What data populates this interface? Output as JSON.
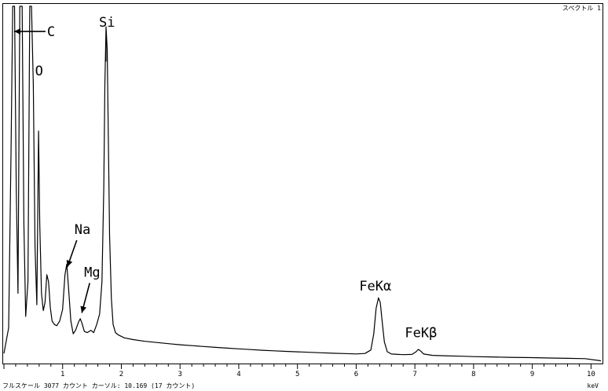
{
  "chart_data": {
    "type": "line",
    "title": "",
    "spectrum_label": "スペクトル 1",
    "status_text": "フルスケール 3077 カウント カーソル: 10.169 (17 カウント)",
    "xlabel": "keV",
    "ylabel": "",
    "xlim": [
      0,
      10.169
    ],
    "ylim": [
      0,
      3077
    ],
    "x_ticks": [
      "1",
      "2",
      "3",
      "4",
      "5",
      "6",
      "7",
      "8",
      "9",
      "10"
    ],
    "series": [
      {
        "points": [
          [
            0.0,
            80
          ],
          [
            0.08,
            300
          ],
          [
            0.12,
            1800
          ],
          [
            0.15,
            3077
          ],
          [
            0.18,
            3077
          ],
          [
            0.21,
            1500
          ],
          [
            0.24,
            600
          ],
          [
            0.27,
            3077
          ],
          [
            0.31,
            3077
          ],
          [
            0.34,
            1200
          ],
          [
            0.37,
            400
          ],
          [
            0.41,
            700
          ],
          [
            0.44,
            3077
          ],
          [
            0.47,
            3077
          ],
          [
            0.5,
            2400
          ],
          [
            0.53,
            1000
          ],
          [
            0.56,
            500
          ],
          [
            0.59,
            2000
          ],
          [
            0.61,
            1200
          ],
          [
            0.64,
            600
          ],
          [
            0.67,
            450
          ],
          [
            0.7,
            520
          ],
          [
            0.73,
            760
          ],
          [
            0.76,
            700
          ],
          [
            0.79,
            480
          ],
          [
            0.82,
            360
          ],
          [
            0.86,
            330
          ],
          [
            0.9,
            320
          ],
          [
            0.95,
            360
          ],
          [
            1.0,
            460
          ],
          [
            1.04,
            760
          ],
          [
            1.07,
            850
          ],
          [
            1.1,
            650
          ],
          [
            1.14,
            360
          ],
          [
            1.18,
            250
          ],
          [
            1.22,
            280
          ],
          [
            1.27,
            350
          ],
          [
            1.3,
            380
          ],
          [
            1.33,
            340
          ],
          [
            1.37,
            270
          ],
          [
            1.42,
            260
          ],
          [
            1.48,
            280
          ],
          [
            1.53,
            260
          ],
          [
            1.58,
            330
          ],
          [
            1.63,
            420
          ],
          [
            1.67,
            700
          ],
          [
            1.7,
            1500
          ],
          [
            1.72,
            2400
          ],
          [
            1.74,
            2900
          ],
          [
            1.76,
            2700
          ],
          [
            1.78,
            1900
          ],
          [
            1.8,
            1100
          ],
          [
            1.83,
            550
          ],
          [
            1.86,
            330
          ],
          [
            1.9,
            260
          ],
          [
            1.95,
            240
          ],
          [
            2.05,
            215
          ],
          [
            2.2,
            200
          ],
          [
            2.4,
            185
          ],
          [
            2.6,
            175
          ],
          [
            2.8,
            165
          ],
          [
            3.0,
            155
          ],
          [
            3.2,
            148
          ],
          [
            3.4,
            140
          ],
          [
            3.6,
            133
          ],
          [
            3.8,
            126
          ],
          [
            4.0,
            120
          ],
          [
            4.2,
            114
          ],
          [
            4.4,
            108
          ],
          [
            4.6,
            103
          ],
          [
            4.8,
            98
          ],
          [
            5.0,
            94
          ],
          [
            5.2,
            90
          ],
          [
            5.4,
            86
          ],
          [
            5.6,
            82
          ],
          [
            5.8,
            79
          ],
          [
            6.0,
            76
          ],
          [
            6.15,
            80
          ],
          [
            6.25,
            110
          ],
          [
            6.3,
            250
          ],
          [
            6.34,
            470
          ],
          [
            6.38,
            560
          ],
          [
            6.41,
            520
          ],
          [
            6.44,
            370
          ],
          [
            6.48,
            180
          ],
          [
            6.53,
            95
          ],
          [
            6.6,
            75
          ],
          [
            6.8,
            70
          ],
          [
            6.95,
            72
          ],
          [
            7.02,
            95
          ],
          [
            7.06,
            115
          ],
          [
            7.1,
            100
          ],
          [
            7.15,
            75
          ],
          [
            7.3,
            64
          ],
          [
            7.5,
            60
          ],
          [
            7.8,
            56
          ],
          [
            8.0,
            53
          ],
          [
            8.3,
            50
          ],
          [
            8.6,
            47
          ],
          [
            9.0,
            44
          ],
          [
            9.3,
            41
          ],
          [
            9.6,
            38
          ],
          [
            9.9,
            35
          ],
          [
            10.169,
            17
          ]
        ]
      }
    ],
    "annotations": [
      {
        "text": "C",
        "x": 0.28,
        "y": 2860
      },
      {
        "text": "O",
        "x": 0.53,
        "y": 2520
      },
      {
        "text": "Si",
        "x": 1.74,
        "y": 2930
      },
      {
        "text": "Na",
        "x": 1.04,
        "y": 800
      },
      {
        "text": "Mg",
        "x": 1.3,
        "y": 410
      },
      {
        "text": "FeKα",
        "x": 6.4,
        "y": 570
      },
      {
        "text": "FeKβ",
        "x": 7.07,
        "y": 125
      }
    ],
    "grid": false,
    "legend": "none",
    "colors": {
      "line": "#000000",
      "background": "#ffffff"
    }
  }
}
